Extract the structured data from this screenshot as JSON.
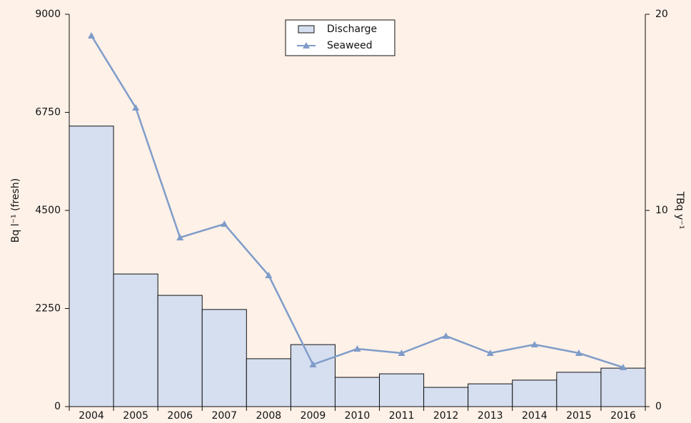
{
  "chart_data": {
    "type": "bar-line",
    "categories": [
      "2004",
      "2005",
      "2006",
      "2007",
      "2008",
      "2009",
      "2010",
      "2011",
      "2012",
      "2013",
      "2014",
      "2015",
      "2016"
    ],
    "series": [
      {
        "name": "Discharge",
        "type": "bar",
        "axis": "y2",
        "color": "#d6dff0",
        "values": [
          14.3,
          6.76,
          5.67,
          4.95,
          2.44,
          3.16,
          1.49,
          1.67,
          0.98,
          1.16,
          1.35,
          1.75,
          1.96
        ]
      },
      {
        "name": "Seaweed",
        "type": "line",
        "axis": "y",
        "color": "#7f9cc9",
        "values": [
          8510,
          6856,
          3878,
          4189,
          3011,
          965,
          1325,
          1227,
          1620,
          1227,
          1424,
          1227,
          900
        ]
      }
    ],
    "ylabel": "Bq l⁻¹ (fresh)",
    "y2label": "TBq y⁻¹",
    "ylim": [
      0,
      9000
    ],
    "yticks": [
      0,
      2250,
      4500,
      6750,
      9000
    ],
    "y2lim": [
      0,
      20
    ],
    "y2ticks": [
      0,
      10,
      20
    ],
    "legend": "top"
  }
}
